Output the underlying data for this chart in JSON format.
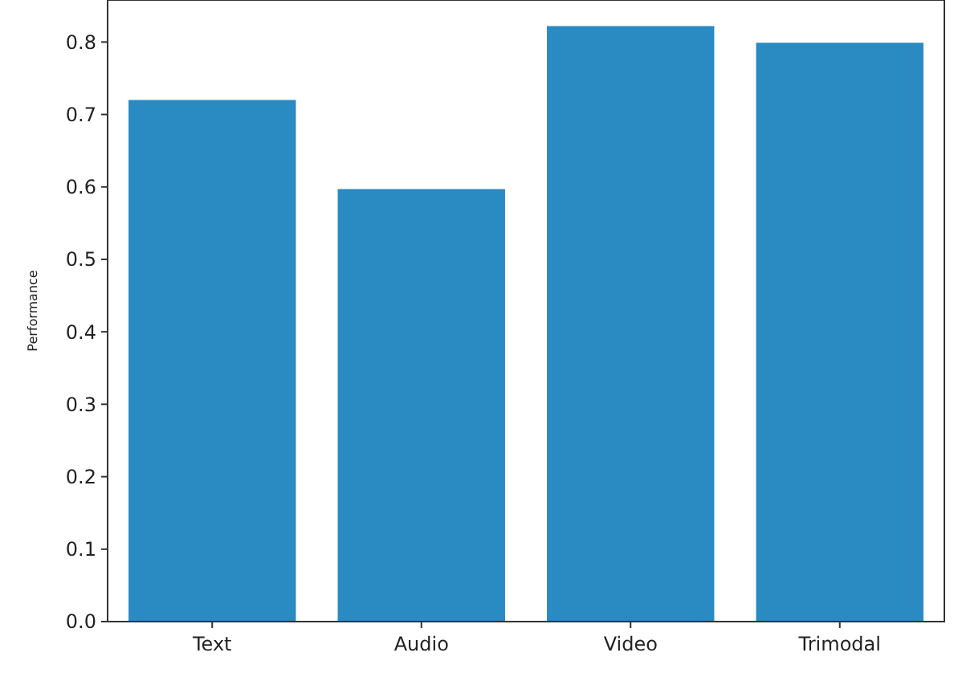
{
  "chart_data": {
    "type": "bar",
    "ylabel": "Performance",
    "categories": [
      "Text",
      "Audio",
      "Video",
      "Trimodal"
    ],
    "values": [
      0.72,
      0.597,
      0.822,
      0.799
    ],
    "color": "#2a8ac2",
    "ylim": [
      0,
      0.858
    ],
    "yticks": [
      {
        "value": 0,
        "label": "0.0"
      },
      0.1,
      0.2,
      0.3,
      0.4,
      0.5,
      0.6,
      0.7,
      0.8
    ],
    "grid": false
  }
}
